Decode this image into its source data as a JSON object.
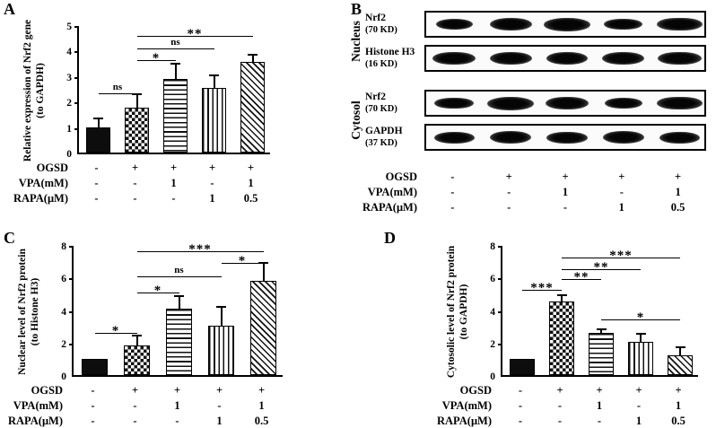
{
  "chart_data": [
    {
      "panel": "A",
      "type": "bar",
      "ylabel": [
        "Relative expression of Nrf2 gene",
        "(to GAPDH)"
      ],
      "ylim": [
        0,
        5
      ],
      "yticks": [
        0,
        1,
        2,
        3,
        4,
        5
      ],
      "grid": false,
      "legend": "none",
      "values": [
        1.0,
        1.75,
        2.9,
        2.55,
        3.55
      ],
      "errors": [
        0.3,
        0.5,
        0.55,
        0.45,
        0.25
      ],
      "patterns": [
        "solid",
        "checker",
        "hlines",
        "vlines",
        "dlines"
      ],
      "significance": [
        {
          "from": 0,
          "to": 1,
          "y": 2.4,
          "label": "ns"
        },
        {
          "from": 1,
          "to": 2,
          "y": 3.7,
          "label": "*"
        },
        {
          "from": 1,
          "to": 3,
          "y": 4.15,
          "label": "ns"
        },
        {
          "from": 1,
          "to": 4,
          "y": 4.65,
          "label": "**"
        }
      ],
      "xrows": [
        {
          "label": "OGSD",
          "values": [
            "-",
            "+",
            "+",
            "+",
            "+"
          ]
        },
        {
          "label": "VPA(mM)",
          "values": [
            "-",
            "-",
            "1",
            "-",
            "1"
          ]
        },
        {
          "label": "RAPA(μM)",
          "values": [
            "-",
            "-",
            "-",
            "1",
            "0.5"
          ]
        }
      ]
    },
    {
      "panel": "C",
      "type": "bar",
      "ylabel": [
        "Nuclear level of Nrf2 protein",
        "(to Histone H3)"
      ],
      "ylim": [
        0,
        8
      ],
      "yticks": [
        0,
        2,
        4,
        6,
        8
      ],
      "grid": false,
      "legend": "none",
      "values": [
        1.0,
        1.8,
        4.1,
        3.05,
        5.8
      ],
      "errors": [
        0,
        0.55,
        0.7,
        1.1,
        1.05
      ],
      "patterns": [
        "solid",
        "checker",
        "hlines",
        "vlines",
        "dlines"
      ],
      "significance": [
        {
          "from": 0,
          "to": 1,
          "y": 2.7,
          "label": "*"
        },
        {
          "from": 1,
          "to": 2,
          "y": 5.2,
          "label": "*"
        },
        {
          "from": 1,
          "to": 3,
          "y": 6.2,
          "label": "ns"
        },
        {
          "from": 3,
          "to": 4,
          "y": 7.0,
          "label": "*"
        },
        {
          "from": 1,
          "to": 4,
          "y": 7.7,
          "label": "***"
        }
      ],
      "xrows": [
        {
          "label": "OGSD",
          "values": [
            "-",
            "+",
            "+",
            "+",
            "+"
          ]
        },
        {
          "label": "VPA(mM)",
          "values": [
            "-",
            "-",
            "1",
            "-",
            "1"
          ]
        },
        {
          "label": "RAPA(μM)",
          "values": [
            "-",
            "-",
            "-",
            "1",
            "0.5"
          ]
        }
      ]
    },
    {
      "panel": "D",
      "type": "bar",
      "ylabel": [
        "Cytosolic level of Nrf2 protein",
        "(to GAPDH)"
      ],
      "ylim": [
        0,
        8
      ],
      "yticks": [
        0,
        2,
        4,
        6,
        8
      ],
      "grid": false,
      "legend": "none",
      "values": [
        1.0,
        4.55,
        2.6,
        2.05,
        1.2
      ],
      "errors": [
        0,
        0.3,
        0.15,
        0.45,
        0.45
      ],
      "patterns": [
        "solid",
        "checker",
        "hlines",
        "vlines",
        "dlines"
      ],
      "significance": [
        {
          "from": 0,
          "to": 1,
          "y": 5.35,
          "label": "***"
        },
        {
          "from": 1,
          "to": 2,
          "y": 6.0,
          "label": "**"
        },
        {
          "from": 1,
          "to": 3,
          "y": 6.6,
          "label": "**"
        },
        {
          "from": 1,
          "to": 4,
          "y": 7.35,
          "label": "***"
        },
        {
          "from": 2,
          "to": 4,
          "y": 3.55,
          "label": "*"
        }
      ],
      "xrows": [
        {
          "label": "OGSD",
          "values": [
            "-",
            "+",
            "+",
            "+",
            "+"
          ]
        },
        {
          "label": "VPA(mM)",
          "values": [
            "-",
            "-",
            "1",
            "-",
            "1"
          ]
        },
        {
          "label": "RAPA(μM)",
          "values": [
            "-",
            "-",
            "-",
            "1",
            "0.5"
          ]
        }
      ]
    }
  ],
  "blots": {
    "panel": "B",
    "groups": [
      {
        "name": "Nucleus",
        "rows": [
          {
            "protein": "Nrf2",
            "kd": "(70 KD)",
            "intensities": [
              0.55,
              0.8,
              1.0,
              0.65,
              0.95
            ]
          },
          {
            "protein": "Histone H3",
            "kd": "(16 KD)",
            "intensities": [
              0.85,
              0.8,
              0.8,
              0.8,
              0.9
            ]
          }
        ]
      },
      {
        "name": "Cytosol",
        "rows": [
          {
            "protein": "Nrf2",
            "kd": "(70 KD)",
            "intensities": [
              0.7,
              1.0,
              0.85,
              0.6,
              0.95
            ]
          },
          {
            "protein": "GAPDH",
            "kd": "(37 KD)",
            "intensities": [
              0.75,
              0.78,
              0.75,
              0.78,
              0.75
            ]
          }
        ]
      }
    ],
    "xrows": [
      {
        "label": "OGSD",
        "values": [
          "-",
          "+",
          "+",
          "+",
          "+"
        ]
      },
      {
        "label": "VPA(mM)",
        "values": [
          "-",
          "-",
          "1",
          "-",
          "1"
        ]
      },
      {
        "label": "RAPA(μM)",
        "values": [
          "-",
          "-",
          "-",
          "1",
          "0.5"
        ]
      }
    ]
  }
}
